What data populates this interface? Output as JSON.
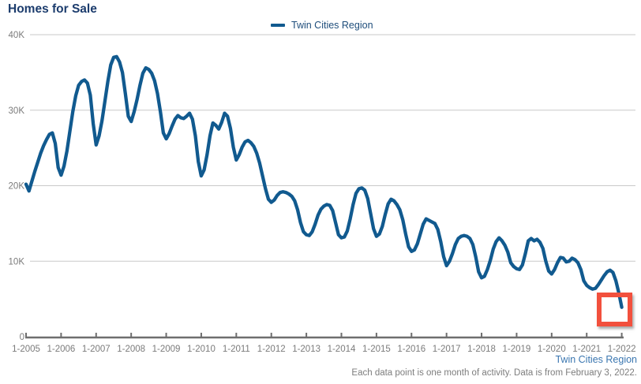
{
  "page": {
    "title": "Homes for Sale"
  },
  "legend": {
    "label": "Twin Cities Region"
  },
  "footer": {
    "series_label": "Twin Cities Region",
    "note": "Each data point is one month of activity. Data is from February 3, 2022."
  },
  "annotation": {
    "type": "highlight_box",
    "around": "final data point (1-2022)"
  },
  "colors": {
    "title_text": "#1c3c6d",
    "line": "#115a8f",
    "legend_text": "#1e4d7b",
    "grid": "#c9c9c9",
    "axis": "#6e6e6e",
    "tick_label": "#7b7b7b",
    "footer_link": "#3a76b0",
    "footer_note": "#7d7d7d",
    "highlight_box": "#f2503d"
  },
  "chart_data": {
    "type": "line",
    "title": "Homes for Sale",
    "x_interval": "month",
    "x_start": "2005-01",
    "x_end": "2022-01",
    "x_tick_labels": [
      "1-2005",
      "1-2006",
      "1-2007",
      "1-2008",
      "1-2009",
      "1-2010",
      "1-2011",
      "1-2012",
      "1-2013",
      "1-2014",
      "1-2015",
      "1-2016",
      "1-2017",
      "1-2018",
      "1-2019",
      "1-2020",
      "1-2021",
      "1-2022"
    ],
    "y_tick_labels": [
      "0",
      "10K",
      "20K",
      "30K",
      "40K"
    ],
    "ylim": [
      0,
      40
    ],
    "y_unit": "thousands of homes for sale",
    "grid": "horizontal",
    "legend_position": "top-center",
    "series": [
      {
        "name": "Twin Cities Region",
        "values": [
          20.2,
          19.3,
          20.6,
          21.9,
          23.1,
          24.3,
          25.3,
          26.1,
          26.8,
          27.0,
          25.6,
          22.4,
          21.4,
          22.6,
          24.6,
          27.2,
          29.8,
          31.9,
          33.3,
          33.8,
          34.0,
          33.6,
          32.0,
          28.2,
          25.4,
          26.6,
          28.6,
          31.2,
          33.8,
          36.0,
          37.0,
          37.1,
          36.4,
          35.0,
          32.2,
          29.2,
          28.5,
          29.8,
          31.4,
          33.3,
          34.9,
          35.6,
          35.4,
          34.9,
          33.9,
          32.2,
          29.8,
          27.0,
          26.2,
          26.9,
          27.9,
          28.8,
          29.3,
          29.0,
          28.9,
          29.2,
          29.6,
          28.8,
          26.6,
          23.2,
          21.3,
          22.1,
          24.1,
          26.6,
          28.3,
          28.0,
          27.5,
          28.4,
          29.6,
          29.2,
          27.6,
          25.1,
          23.4,
          24.1,
          25.1,
          25.8,
          26.0,
          25.7,
          25.2,
          24.3,
          23.0,
          21.3,
          19.6,
          18.2,
          17.8,
          18.1,
          18.7,
          19.1,
          19.2,
          19.1,
          18.9,
          18.6,
          18.0,
          16.8,
          15.1,
          13.9,
          13.5,
          13.4,
          13.9,
          14.9,
          16.1,
          16.9,
          17.3,
          17.5,
          17.4,
          16.7,
          15.1,
          13.5,
          13.1,
          13.2,
          14.0,
          15.6,
          17.5,
          19.0,
          19.6,
          19.7,
          19.4,
          18.3,
          16.3,
          14.3,
          13.3,
          13.6,
          14.6,
          16.2,
          17.6,
          18.2,
          18.0,
          17.5,
          16.8,
          15.5,
          13.6,
          11.9,
          11.3,
          11.5,
          12.3,
          13.6,
          14.9,
          15.6,
          15.4,
          15.2,
          15.0,
          14.2,
          12.6,
          10.6,
          9.4,
          10.0,
          11.0,
          12.2,
          13.0,
          13.3,
          13.4,
          13.3,
          13.0,
          12.2,
          10.6,
          8.6,
          7.8,
          8.0,
          8.9,
          10.1,
          11.6,
          12.6,
          13.1,
          12.7,
          12.1,
          11.2,
          9.8,
          9.3,
          9.0,
          8.9,
          9.5,
          11.0,
          12.7,
          13.0,
          12.7,
          12.9,
          12.5,
          11.7,
          10.0,
          8.7,
          8.3,
          8.9,
          9.8,
          10.5,
          10.4,
          9.9,
          10.0,
          10.4,
          10.2,
          9.8,
          8.9,
          7.4,
          6.8,
          6.5,
          6.3,
          6.4,
          6.9,
          7.5,
          8.1,
          8.6,
          8.8,
          8.5,
          7.4,
          5.8,
          3.9
        ]
      }
    ]
  }
}
